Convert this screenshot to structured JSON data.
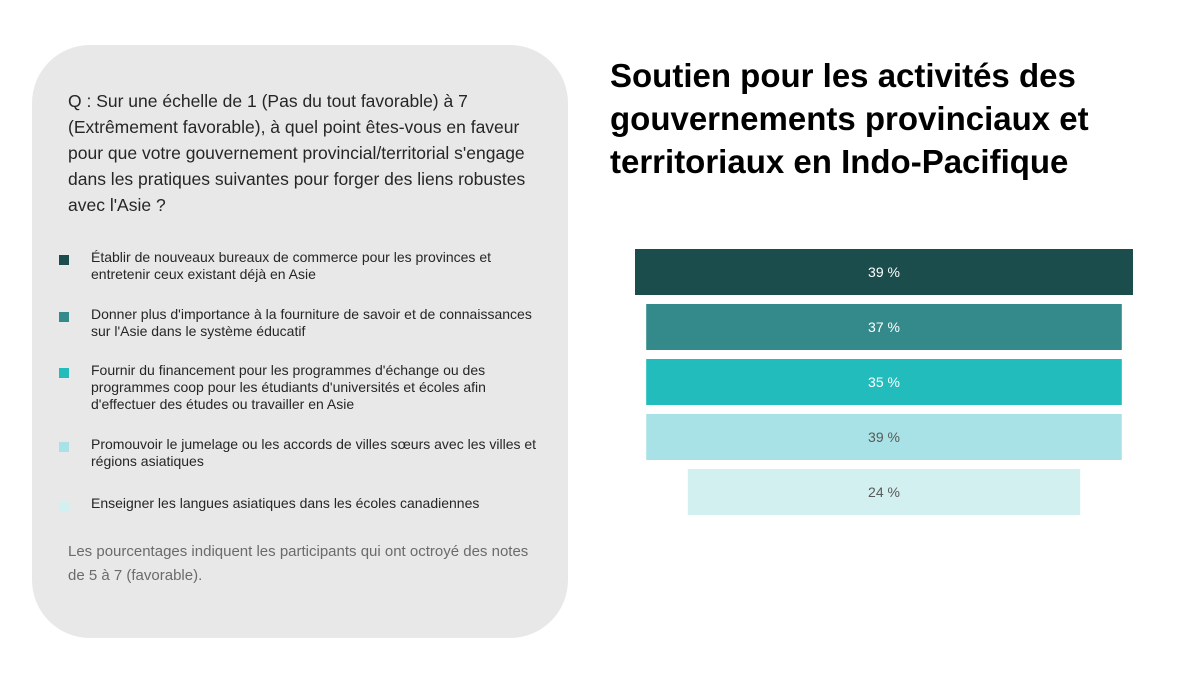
{
  "question": "Q : Sur une échelle de 1 (Pas du tout favorable) à 7 (Extrêmement favorable), à quel point êtes-vous en faveur pour que votre gouvernement provincial/territorial s'engage dans les pratiques suivantes pour forger des liens robustes avec l'Asie ?",
  "footnote": "Les pourcentages indiquent les participants qui ont octroyé des notes de 5 à 7 (favorable).",
  "chart_data": {
    "type": "bar",
    "orientation": "horizontal-centered-funnel",
    "title": "Soutien pour les activités des gouvernements provinciaux et territoriaux en Indo-Pacifique",
    "xlabel": "",
    "ylabel": "",
    "grid": false,
    "legend_position": "left",
    "unit": "%",
    "categories": [
      "Établir de nouveaux bureaux de commerce pour les provinces et entretenir ceux existant déjà en Asie",
      "Donner plus d'importance à la fourniture de savoir et de connaissances sur l'Asie dans le système éducatif",
      "Fournir du financement pour les programmes d'échange ou des programmes coop pour les étudiants d'universités et écoles afin d'effectuer des études ou travailler en Asie",
      "Promouvoir le jumelage ou les accords de villes sœurs avec les villes et régions asiatiques",
      "Enseigner les langues asiatiques dans les écoles canadiennes"
    ],
    "values": [
      39,
      37,
      35,
      39,
      24
    ],
    "labels": [
      "39 %",
      "37 %",
      "35 %",
      "39 %",
      "24 %"
    ],
    "colors": [
      "#1b4d4d",
      "#348a8a",
      "#22bcbc",
      "#a8e2e6",
      "#d3f0f0"
    ],
    "label_colors": [
      "#ffffff",
      "#ffffff",
      "#ffffff",
      "#595959",
      "#595959"
    ],
    "display_widths": [
      1.0,
      0.955,
      0.955,
      0.955,
      0.788
    ]
  }
}
